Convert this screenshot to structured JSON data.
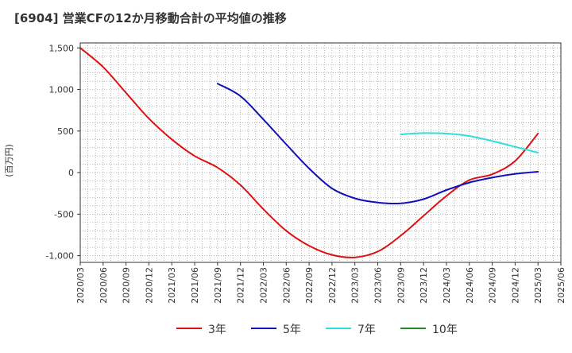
{
  "chart_data": {
    "type": "line",
    "title": "[6904]  営業CFの12か月移動合計の平均値の推移",
    "ylabel": "(百万円)",
    "ylim": [
      -1080,
      1560
    ],
    "yticks": [
      -1000,
      -500,
      0,
      500,
      1000,
      1500
    ],
    "ytick_labels": [
      "-1,000",
      "-500",
      "0",
      "500",
      "1,000",
      "1,500"
    ],
    "xlim": [
      "2020/03",
      "2025/06"
    ],
    "xticks": [
      "2020/03",
      "2020/06",
      "2020/09",
      "2020/12",
      "2021/03",
      "2021/06",
      "2021/09",
      "2021/12",
      "2022/03",
      "2022/06",
      "2022/09",
      "2022/12",
      "2023/03",
      "2023/06",
      "2023/09",
      "2023/12",
      "2024/03",
      "2024/06",
      "2024/09",
      "2024/12",
      "2025/03",
      "2025/06"
    ],
    "grid": true,
    "legend_position": "bottom",
    "series": [
      {
        "name": "3年",
        "color": "#dd1111",
        "points": [
          [
            "2020/03",
            1500
          ],
          [
            "2020/06",
            1270
          ],
          [
            "2020/09",
            960
          ],
          [
            "2020/12",
            650
          ],
          [
            "2021/03",
            400
          ],
          [
            "2021/06",
            200
          ],
          [
            "2021/09",
            60
          ],
          [
            "2021/12",
            -150
          ],
          [
            "2022/03",
            -440
          ],
          [
            "2022/06",
            -700
          ],
          [
            "2022/09",
            -880
          ],
          [
            "2022/12",
            -990
          ],
          [
            "2023/03",
            -1020
          ],
          [
            "2023/06",
            -950
          ],
          [
            "2023/09",
            -760
          ],
          [
            "2023/12",
            -520
          ],
          [
            "2024/03",
            -280
          ],
          [
            "2024/06",
            -90
          ],
          [
            "2024/09",
            -20
          ],
          [
            "2024/12",
            140
          ],
          [
            "2025/03",
            470
          ]
        ]
      },
      {
        "name": "5年",
        "color": "#1111bb",
        "points": [
          [
            "2021/09",
            1070
          ],
          [
            "2021/12",
            920
          ],
          [
            "2022/03",
            640
          ],
          [
            "2022/06",
            340
          ],
          [
            "2022/09",
            50
          ],
          [
            "2022/12",
            -190
          ],
          [
            "2023/03",
            -310
          ],
          [
            "2023/06",
            -360
          ],
          [
            "2023/09",
            -370
          ],
          [
            "2023/12",
            -320
          ],
          [
            "2024/03",
            -210
          ],
          [
            "2024/06",
            -120
          ],
          [
            "2024/09",
            -60
          ],
          [
            "2024/12",
            -15
          ],
          [
            "2025/03",
            10
          ]
        ]
      },
      {
        "name": "7年",
        "color": "#33dddd",
        "points": [
          [
            "2023/09",
            460
          ],
          [
            "2023/12",
            475
          ],
          [
            "2024/03",
            470
          ],
          [
            "2024/06",
            440
          ],
          [
            "2024/09",
            380
          ],
          [
            "2024/12",
            310
          ],
          [
            "2025/03",
            240
          ]
        ]
      },
      {
        "name": "10年",
        "color": "#228822",
        "points": []
      }
    ]
  }
}
